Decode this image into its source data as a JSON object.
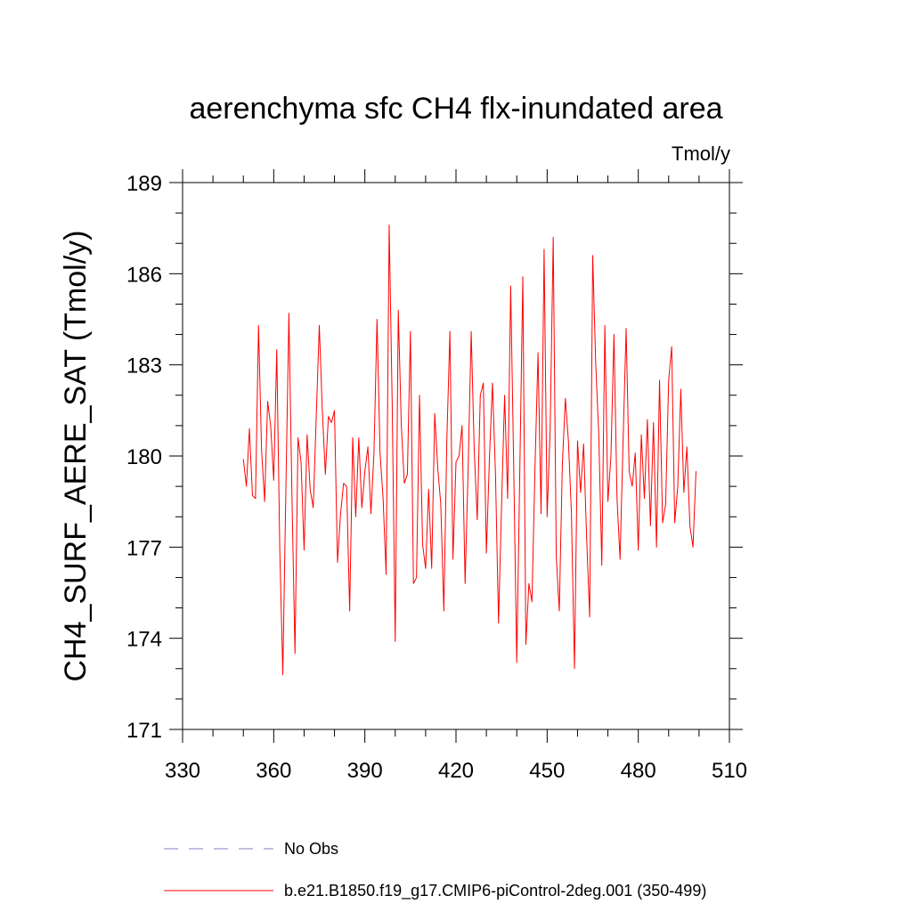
{
  "chart_data": {
    "type": "line",
    "title": "aerenchyma sfc CH4 flx-inundated area",
    "units_label": "Tmol/y",
    "ylabel": "CH4_SURF_AERE_SAT  (Tmol/y)",
    "xlabel": "",
    "xlim": [
      330,
      510
    ],
    "ylim": [
      171,
      189
    ],
    "xticks": [
      "330",
      "360",
      "390",
      "420",
      "450",
      "480",
      "510"
    ],
    "yticks": [
      "171",
      "174",
      "177",
      "180",
      "183",
      "186",
      "189"
    ],
    "grid": false,
    "legend_position": "bottom",
    "series": [
      {
        "name": "No Obs",
        "color": "#8080c0",
        "dash": "dashed",
        "x": [],
        "values": []
      },
      {
        "name": "b.e21.B1850.f19_g17.CMIP6-piControl-2deg.001 (350-499)",
        "color": "#ff0000",
        "dash": "solid",
        "x": [
          350,
          351,
          352,
          353,
          354,
          355,
          356,
          357,
          358,
          359,
          360,
          361,
          362,
          363,
          364,
          365,
          366,
          367,
          368,
          369,
          370,
          371,
          372,
          373,
          374,
          375,
          376,
          377,
          378,
          379,
          380,
          381,
          382,
          383,
          384,
          385,
          386,
          387,
          388,
          389,
          390,
          391,
          392,
          393,
          394,
          395,
          396,
          397,
          398,
          399,
          400,
          401,
          402,
          403,
          404,
          405,
          406,
          407,
          408,
          409,
          410,
          411,
          412,
          413,
          414,
          415,
          416,
          417,
          418,
          419,
          420,
          421,
          422,
          423,
          424,
          425,
          426,
          427,
          428,
          429,
          430,
          431,
          432,
          433,
          434,
          435,
          436,
          437,
          438,
          439,
          440,
          441,
          442,
          443,
          444,
          445,
          446,
          447,
          448,
          449,
          450,
          451,
          452,
          453,
          454,
          455,
          456,
          457,
          458,
          459,
          460,
          461,
          462,
          463,
          464,
          465,
          466,
          467,
          468,
          469,
          470,
          471,
          472,
          473,
          474,
          475,
          476,
          477,
          478,
          479,
          480,
          481,
          482,
          483,
          484,
          485,
          486,
          487,
          488,
          489,
          490,
          491,
          492,
          493,
          494,
          495,
          496,
          497,
          498,
          499
        ],
        "values": [
          179.9,
          179.0,
          180.9,
          178.7,
          178.6,
          184.3,
          180.2,
          178.5,
          181.8,
          181.0,
          179.2,
          183.5,
          176.9,
          172.8,
          178.9,
          184.7,
          178.7,
          173.5,
          180.6,
          179.8,
          176.9,
          180.7,
          178.9,
          178.3,
          181.3,
          184.3,
          181.5,
          179.4,
          181.3,
          181.1,
          181.5,
          176.5,
          178.1,
          179.1,
          179.0,
          174.9,
          180.6,
          178.0,
          180.6,
          178.3,
          179.5,
          180.3,
          178.1,
          180.1,
          184.5,
          180.1,
          178.6,
          176.1,
          187.6,
          181.7,
          173.9,
          184.8,
          181.0,
          179.1,
          179.4,
          184.1,
          175.8,
          176.0,
          182.0,
          177.1,
          176.3,
          178.9,
          176.3,
          181.4,
          179.6,
          178.4,
          174.9,
          180.6,
          184.1,
          176.6,
          179.8,
          180.0,
          181.0,
          175.8,
          179.6,
          184.1,
          180.2,
          177.9,
          182.0,
          182.4,
          176.8,
          179.9,
          182.4,
          179.4,
          174.5,
          178.4,
          182.0,
          178.6,
          185.6,
          179.6,
          173.2,
          179.5,
          185.9,
          173.8,
          175.8,
          175.2,
          179.6,
          183.4,
          178.1,
          186.8,
          178.0,
          180.9,
          187.2,
          176.7,
          174.9,
          179.7,
          181.9,
          180.5,
          178.1,
          173.0,
          180.5,
          178.8,
          180.4,
          177.3,
          174.7,
          186.6,
          183.0,
          180.7,
          176.4,
          184.3,
          178.5,
          180.0,
          184.0,
          178.6,
          176.6,
          180.5,
          184.2,
          179.5,
          179.0,
          180.1,
          176.9,
          180.7,
          178.6,
          181.2,
          177.7,
          181.1,
          177.0,
          182.5,
          177.8,
          178.4,
          182.5,
          183.6,
          177.8,
          179.0,
          182.2,
          178.8,
          180.3,
          177.7,
          177.0,
          179.5
        ]
      }
    ]
  }
}
